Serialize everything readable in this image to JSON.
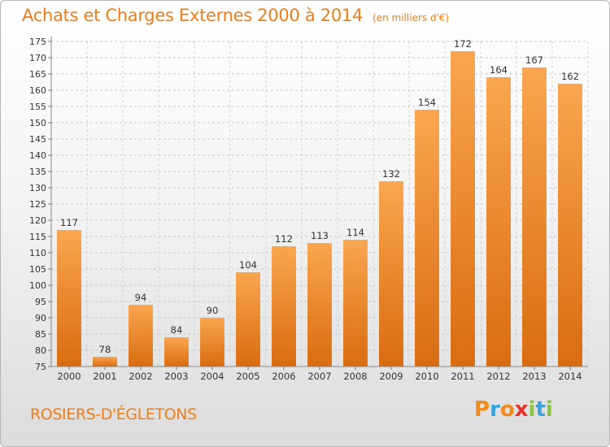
{
  "chart_data": {
    "type": "bar",
    "title": "Achats et Charges Externes 2000 à 2014",
    "unit_label": "(en milliers d'€)",
    "categories": [
      "2000",
      "2001",
      "2002",
      "2003",
      "2004",
      "2005",
      "2006",
      "2007",
      "2008",
      "2009",
      "2010",
      "2011",
      "2012",
      "2013",
      "2014"
    ],
    "values": [
      117,
      78,
      94,
      84,
      90,
      104,
      112,
      113,
      114,
      132,
      154,
      172,
      164,
      167,
      162
    ],
    "ylim": [
      75,
      175
    ],
    "yticks": [
      75,
      80,
      85,
      90,
      95,
      100,
      105,
      110,
      115,
      120,
      125,
      130,
      135,
      140,
      145,
      150,
      155,
      160,
      165,
      170,
      175
    ],
    "grid": true,
    "bar_color": "#f59a3e"
  },
  "place_name": "ROSIERS-D'ÉGLETONS",
  "logo": {
    "letters": [
      "P",
      "r",
      "o",
      "x",
      "i",
      "t",
      "i"
    ],
    "colors": [
      "#f08a1c",
      "#3aa3dc",
      "#f08a1c",
      "#e6332a",
      "#8cc63f",
      "#3aa3dc",
      "#8cc63f"
    ]
  }
}
